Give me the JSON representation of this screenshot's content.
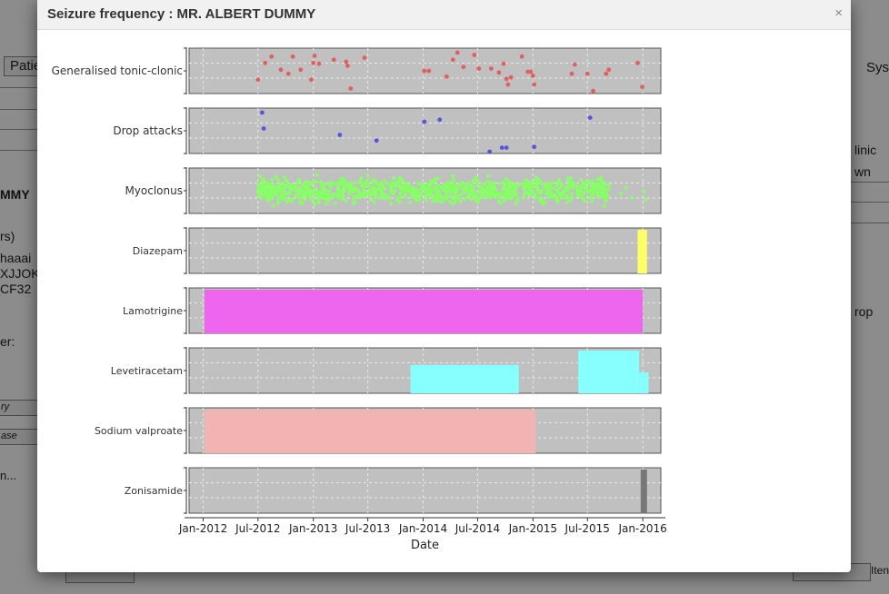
{
  "background": {
    "tab_label": "Patie",
    "right_label": "Sys",
    "left_fragments": [
      "MMY",
      "rs)",
      "haaai",
      "XJJOK",
      "CF32",
      "er:",
      "ry",
      "ase",
      "n..."
    ],
    "right_fragments": [
      "linic",
      "wn",
      "rop"
    ],
    "footer_right": "Iten"
  },
  "modal": {
    "title": "Seizure frequency : MR. ALBERT DUMMY",
    "close_glyph": "×"
  },
  "chart_data": {
    "type": "scatter",
    "title": "",
    "xlabel": "Date",
    "x_range": [
      "2011-11-15",
      "2016-03-01"
    ],
    "x_ticks": [
      "Jan-2012",
      "Jul-2012",
      "Jan-2013",
      "Jul-2013",
      "Jan-2014",
      "Jul-2014",
      "Jan-2015",
      "Jul-2015",
      "Jan-2016"
    ],
    "grid": true,
    "panel_background": "#c0c0c0",
    "panels": [
      {
        "name": "Generalised tonic-clonic",
        "kind": "events",
        "color": "#e06060",
        "events": [
          [
            "2012-07-01",
            0.3
          ],
          [
            "2012-07-25",
            0.72
          ],
          [
            "2012-08-15",
            0.88
          ],
          [
            "2012-09-15",
            0.55
          ],
          [
            "2012-10-10",
            0.45
          ],
          [
            "2012-10-25",
            0.88
          ],
          [
            "2012-11-20",
            0.55
          ],
          [
            "2012-12-25",
            0.3
          ],
          [
            "2013-01-01",
            0.72
          ],
          [
            "2013-01-05",
            0.9
          ],
          [
            "2013-01-20",
            0.7
          ],
          [
            "2013-03-10",
            0.8
          ],
          [
            "2013-04-20",
            0.75
          ],
          [
            "2013-04-25",
            0.65
          ],
          [
            "2013-05-05",
            0.08
          ],
          [
            "2013-06-20",
            0.85
          ],
          [
            "2014-01-05",
            0.52
          ],
          [
            "2014-01-20",
            0.52
          ],
          [
            "2014-03-20",
            0.38
          ],
          [
            "2014-04-10",
            0.8
          ],
          [
            "2014-04-25",
            0.98
          ],
          [
            "2014-05-15",
            0.62
          ],
          [
            "2014-06-20",
            0.92
          ],
          [
            "2014-07-05",
            0.58
          ],
          [
            "2014-08-15",
            0.58
          ],
          [
            "2014-09-10",
            0.48
          ],
          [
            "2014-09-25",
            0.7
          ],
          [
            "2014-10-05",
            0.32
          ],
          [
            "2014-10-10",
            0.18
          ],
          [
            "2014-10-20",
            0.36
          ],
          [
            "2014-11-25",
            0.88
          ],
          [
            "2014-12-15",
            0.5
          ],
          [
            "2014-12-25",
            0.5
          ],
          [
            "2015-01-01",
            0.4
          ],
          [
            "2015-01-05",
            0.18
          ],
          [
            "2015-05-10",
            0.45
          ],
          [
            "2015-05-20",
            0.68
          ],
          [
            "2015-07-01",
            0.45
          ],
          [
            "2015-07-20",
            0.02
          ],
          [
            "2015-09-01",
            0.45
          ],
          [
            "2015-09-10",
            0.55
          ],
          [
            "2015-12-15",
            0.72
          ],
          [
            "2015-12-30",
            0.12
          ]
        ]
      },
      {
        "name": "Drop attacks",
        "kind": "events",
        "color": "#5555dd",
        "events": [
          [
            "2012-07-15",
            0.98
          ],
          [
            "2012-07-20",
            0.58
          ],
          [
            "2013-03-30",
            0.42
          ],
          [
            "2013-07-30",
            0.28
          ],
          [
            "2014-01-05",
            0.75
          ],
          [
            "2014-02-25",
            0.8
          ],
          [
            "2014-08-10",
            0.0
          ],
          [
            "2014-09-20",
            0.1
          ],
          [
            "2014-10-05",
            0.1
          ],
          [
            "2015-01-05",
            0.12
          ],
          [
            "2015-07-10",
            0.85
          ]
        ]
      },
      {
        "name": "Myoclonus",
        "kind": "density",
        "color": "#88ff66",
        "range": [
          "2012-07-01",
          "2015-09-15"
        ],
        "sparse_points": [
          [
            "2015-10-20",
            0.45
          ],
          [
            "2015-11-05",
            0.6
          ],
          [
            "2015-11-25",
            0.35
          ],
          [
            "2016-01-05",
            0.5
          ],
          [
            "2016-01-10",
            0.3
          ]
        ]
      },
      {
        "name": "Diazepam",
        "kind": "bars",
        "color": "#ffff66",
        "bars": [
          {
            "start": "2015-12-15",
            "end": "2016-01-15",
            "top": 1.0
          }
        ]
      },
      {
        "name": "Lamotrigine",
        "kind": "bars",
        "color": "#ee66ee",
        "bars": [
          {
            "start": "2012-01-05",
            "end": "2016-01-01",
            "top": 1.0
          }
        ]
      },
      {
        "name": "Levetiracetam",
        "kind": "bars",
        "color": "#88ffff",
        "bars": [
          {
            "start": "2013-11-20",
            "end": "2014-11-15",
            "top": 0.65
          },
          {
            "start": "2015-06-01",
            "end": "2015-12-20",
            "top": 0.98
          },
          {
            "start": "2015-12-20",
            "end": "2016-01-20",
            "top": 0.48
          }
        ]
      },
      {
        "name": "Sodium valproate",
        "kind": "bars",
        "color": "#f2b3b3",
        "bars": [
          {
            "start": "2012-01-05",
            "end": "2015-01-10",
            "top": 1.0
          }
        ]
      },
      {
        "name": "Zonisamide",
        "kind": "bars",
        "color": "#777777",
        "bars": [
          {
            "start": "2015-12-25",
            "end": "2016-01-15",
            "top": 1.0
          }
        ]
      }
    ]
  }
}
